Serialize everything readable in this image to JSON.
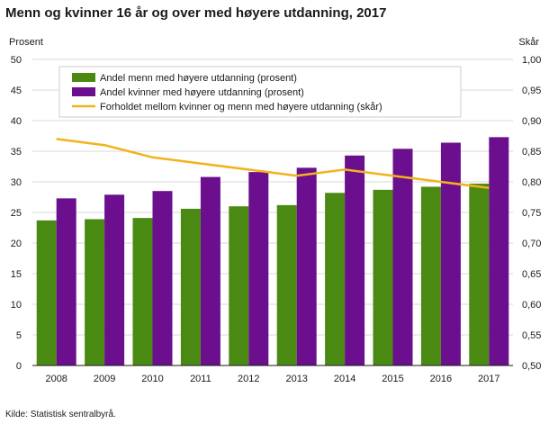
{
  "chart_data": {
    "type": "bar",
    "title": "Menn og kvinner 16 år og over med høyere utdanning, 2017",
    "ylabel_left": "Prosent",
    "ylabel_right": "Skår",
    "categories": [
      "2008",
      "2009",
      "2010",
      "2011",
      "2012",
      "2013",
      "2014",
      "2015",
      "2016",
      "2017"
    ],
    "ylim_left": [
      0,
      50
    ],
    "ylim_right": [
      0.5,
      1.0
    ],
    "yticks_left": [
      "0",
      "5",
      "10",
      "15",
      "20",
      "25",
      "30",
      "35",
      "40",
      "45",
      "50"
    ],
    "yticks_right": [
      "0,50",
      "0,55",
      "0,60",
      "0,65",
      "0,70",
      "0,75",
      "0,80",
      "0,85",
      "0,90",
      "0,95",
      "1,00"
    ],
    "series": [
      {
        "name": "Andel menn med høyere utdanning (prosent)",
        "type": "bar",
        "axis": "left",
        "color": "#4a8a12",
        "values": [
          23.7,
          23.9,
          24.1,
          25.6,
          26.0,
          26.2,
          28.2,
          28.7,
          29.2,
          29.7
        ]
      },
      {
        "name": "Andel kvinner med høyere utdanning (prosent)",
        "type": "bar",
        "axis": "left",
        "color": "#6b0f8f",
        "values": [
          27.3,
          27.9,
          28.5,
          30.8,
          31.6,
          32.3,
          34.3,
          35.4,
          36.4,
          37.3
        ]
      },
      {
        "name": "Forholdet mellom kvinner og menn med høyere utdanning (skår)",
        "type": "line",
        "axis": "right",
        "color": "#f2b21c",
        "values": [
          0.87,
          0.86,
          0.84,
          0.83,
          0.82,
          0.81,
          0.82,
          0.81,
          0.8,
          0.79
        ]
      }
    ],
    "grid": true,
    "legend_position": "top-left"
  },
  "source": "Kilde: Statistisk sentralbyrå."
}
